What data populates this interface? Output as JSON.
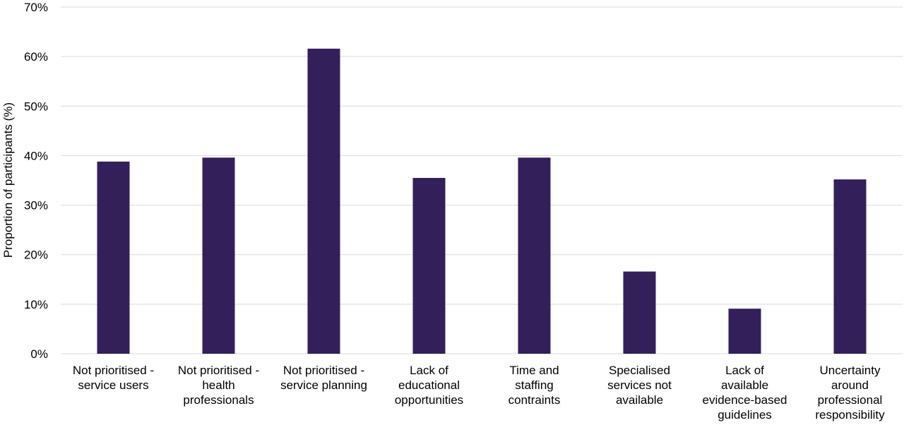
{
  "chart_data": {
    "type": "bar",
    "ylabel": "Proportion of participants (%)",
    "ylim": [
      0,
      70
    ],
    "y_tick_step": 10,
    "y_tick_format": "percent",
    "grid": true,
    "bar_color": "#33205a",
    "categories": [
      [
        "Not prioritised -",
        "service users"
      ],
      [
        "Not prioritised -",
        "health",
        "professionals"
      ],
      [
        "Not prioritised -",
        "service planning"
      ],
      [
        "Lack of",
        "educational",
        "opportunities"
      ],
      [
        "Time and",
        "staffing",
        "contraints"
      ],
      [
        "Specialised",
        "services not",
        "available"
      ],
      [
        "Lack of",
        "available",
        "evidence-based",
        "guidelines"
      ],
      [
        "Uncertainty",
        "around",
        "professional",
        "responsibility"
      ]
    ],
    "values": [
      38.8,
      39.6,
      61.6,
      35.5,
      39.6,
      16.6,
      9.1,
      35.2
    ]
  }
}
